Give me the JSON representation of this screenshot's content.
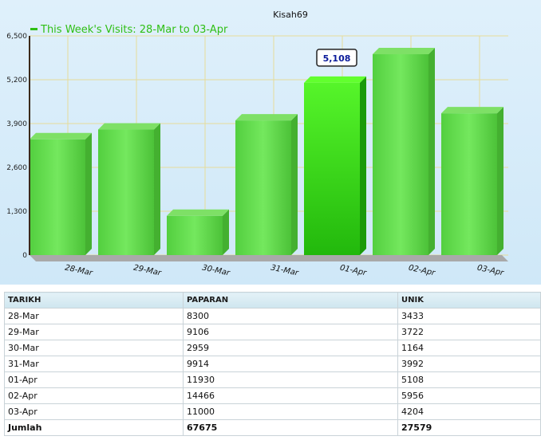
{
  "chart_data": {
    "type": "bar",
    "title": "Kisah69",
    "legend": "This Week's Visits: 28-Mar to 03-Apr",
    "legend_position": "top-left",
    "categories": [
      "28-Mar",
      "29-Mar",
      "30-Mar",
      "31-Mar",
      "01-Apr",
      "02-Apr",
      "03-Apr"
    ],
    "series": [
      {
        "name": "This Week's Visits: 28-Mar to 03-Apr",
        "values": [
          3433,
          3722,
          1164,
          3992,
          5108,
          5956,
          4204
        ]
      }
    ],
    "yticks": [
      "0",
      "1,300",
      "2,600",
      "3,900",
      "5,200",
      "6,500"
    ],
    "ylim": [
      0,
      6500
    ],
    "grid": true,
    "highlight": {
      "index": 4,
      "label": "5,108"
    },
    "colors": {
      "bar": "#5fd84a",
      "bar_highlight": "#2ecf13",
      "legend": "#2fbf14",
      "grid": "#e6dc9a",
      "callout_text": "#0a1a9a"
    }
  },
  "table": {
    "headers": [
      "TARIKH",
      "PAPARAN",
      "UNIK"
    ],
    "rows": [
      [
        "28-Mar",
        "8300",
        "3433"
      ],
      [
        "29-Mar",
        "9106",
        "3722"
      ],
      [
        "30-Mar",
        "2959",
        "1164"
      ],
      [
        "31-Mar",
        "9914",
        "3992"
      ],
      [
        "01-Apr",
        "11930",
        "5108"
      ],
      [
        "02-Apr",
        "14466",
        "5956"
      ],
      [
        "03-Apr",
        "11000",
        "4204"
      ]
    ],
    "total": [
      "Jumlah",
      "67675",
      "27579"
    ]
  }
}
